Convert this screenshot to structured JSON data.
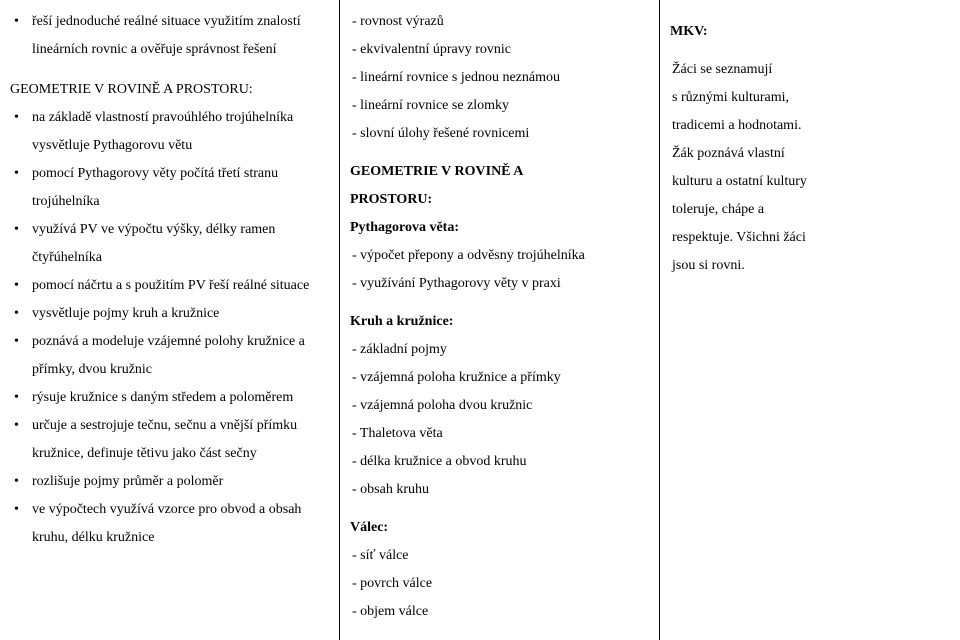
{
  "col1": {
    "top_bullets": [
      "řeší jednoduché reálné situace využitím znalostí lineárních rovnic a ověřuje správnost řešení"
    ],
    "section_head": "GEOMETRIE V ROVINĚ A PROSTORU:",
    "bullets": [
      "na základě vlastností pravoúhlého trojúhelníka vysvětluje Pythagorovu větu",
      "pomocí Pythagorovy věty počítá třetí stranu trojúhelníka",
      "využívá PV ve výpočtu výšky, délky ramen čtyřúhelníka",
      "pomocí náčrtu a s použitím PV řeší reálné situace",
      "vysvětluje pojmy kruh a kružnice",
      "poznává a modeluje vzájemné polohy kružnice a přímky, dvou kružnic",
      "rýsuje kružnice s daným středem a poloměrem",
      "určuje a sestrojuje tečnu, sečnu a vnější přímku kružnice, definuje tětivu jako část sečny",
      "rozlišuje pojmy průměr a poloměr",
      "ve výpočtech využívá vzorce pro obvod a obsah kruhu, délku kružnice"
    ]
  },
  "col2": {
    "top_lines": [
      "- rovnost výrazů",
      "- ekvivalentní úpravy rovnic",
      "- lineární rovnice s jednou neznámou",
      "- lineární rovnice se zlomky",
      "- slovní úlohy řešené rovnicemi"
    ],
    "sec1_head1": "GEOMETRIE V ROVINĚ A",
    "sec1_head2": "PROSTORU:",
    "sec1_sub": "Pythagorova věta:",
    "sec1_lines": [
      "- výpočet přepony a odvěsny trojúhelníka",
      "- využívání Pythagorovy věty v praxi"
    ],
    "sec2_head": "Kruh a kružnice:",
    "sec2_lines": [
      "- základní pojmy",
      "- vzájemná poloha kružnice a přímky",
      "- vzájemná poloha dvou kružnic",
      "- Thaletova věta",
      "- délka kružnice a obvod kruhu",
      "- obsah kruhu"
    ],
    "sec3_head": "Válec:",
    "sec3_lines": [
      "- síť válce",
      "- povrch válce",
      "- objem válce"
    ]
  },
  "col3": {
    "head": "MKV:",
    "lines": [
      "Žáci se seznamují",
      "s různými kulturami,",
      "tradicemi a hodnotami.",
      "Žák poznává vlastní",
      "kulturu a ostatní kultury",
      "toleruje, chápe a",
      "respektuje. Všichni žáci",
      "jsou si rovni."
    ]
  }
}
